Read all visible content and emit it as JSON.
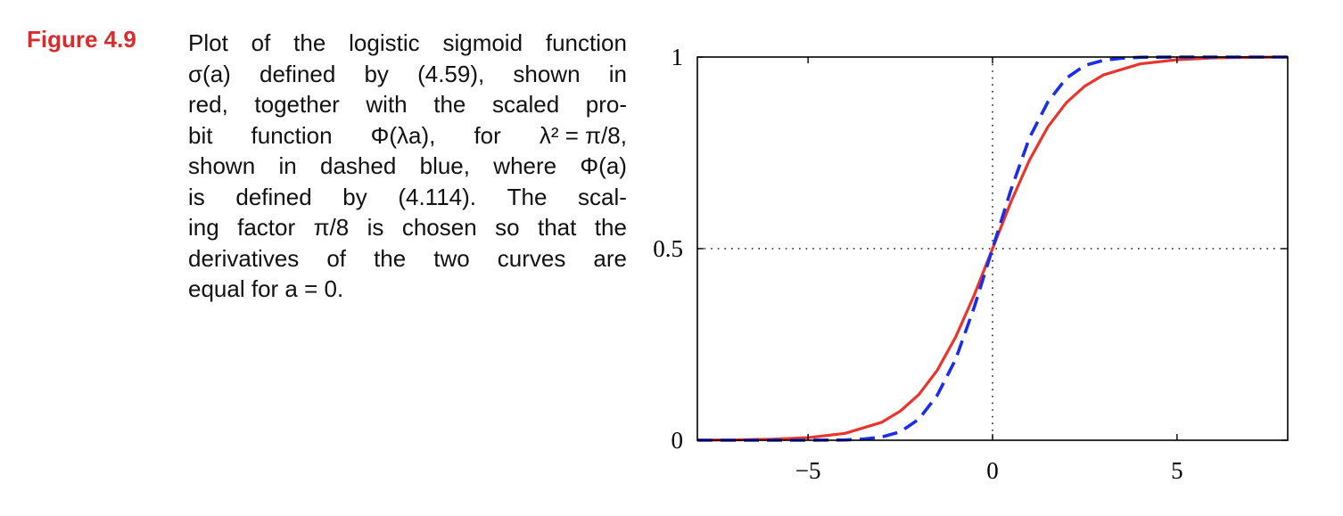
{
  "figure": {
    "label": "Figure 4.9",
    "caption_lines": [
      [
        "Plot",
        "of",
        "the",
        "logistic",
        "sigmoid",
        "function"
      ],
      [
        "σ(a)",
        "defined",
        "by",
        "(4.59),",
        "shown",
        "in"
      ],
      [
        "red,",
        "together",
        "with",
        "the",
        "scaled",
        "pro-"
      ],
      [
        "bit",
        "function",
        "Φ(λa),",
        "for",
        "λ² = π/8,"
      ],
      [
        "shown",
        "in",
        "dashed",
        "blue,",
        "where",
        "Φ(a)"
      ],
      [
        "is",
        "defined",
        "by",
        "(4.114).",
        "The",
        "scal-"
      ],
      [
        "ing",
        "factor",
        "π/8",
        "is",
        "chosen",
        "so",
        "that",
        "the"
      ],
      [
        "derivatives",
        "of",
        "the",
        "two",
        "curves",
        "are"
      ],
      [
        "equal for a = 0."
      ]
    ]
  },
  "chart_data": {
    "type": "line",
    "title": "",
    "xlabel": "",
    "ylabel": "",
    "xlim": [
      -8,
      8
    ],
    "ylim": [
      0,
      1
    ],
    "x_ticks": [
      -5,
      0,
      5
    ],
    "x_tick_labels": [
      "−5",
      "0",
      "5"
    ],
    "y_ticks": [
      0,
      0.5,
      1
    ],
    "y_tick_labels": [
      "0",
      "0.5",
      "1"
    ],
    "reference_lines": {
      "x": 0,
      "y": 0.5,
      "style": "dotted"
    },
    "series": [
      {
        "color": "#e8352d",
        "style": "solid",
        "x": [
          -8,
          -7,
          -6,
          -5,
          -4,
          -3,
          -2.5,
          -2,
          -1.5,
          -1,
          -0.5,
          0,
          0.5,
          1,
          1.5,
          2,
          2.5,
          3,
          4,
          5,
          6,
          7,
          8
        ],
        "values": [
          0.0003,
          0.0009,
          0.0025,
          0.0067,
          0.018,
          0.047,
          0.076,
          0.119,
          0.182,
          0.269,
          0.378,
          0.5,
          0.622,
          0.731,
          0.818,
          0.881,
          0.924,
          0.953,
          0.982,
          0.993,
          0.998,
          0.999,
          1.0
        ]
      },
      {
        "color": "#1a2ee8",
        "style": "dashed",
        "x": [
          -8,
          -6,
          -5,
          -4,
          -3.5,
          -3,
          -2.5,
          -2,
          -1.5,
          -1,
          -0.5,
          0,
          0.5,
          1,
          1.5,
          2,
          2.5,
          3,
          3.5,
          4,
          5,
          6,
          8
        ],
        "values": [
          0.0,
          0.0,
          0.0,
          0.0007,
          0.003,
          0.0085,
          0.022,
          0.055,
          0.117,
          0.211,
          0.346,
          0.5,
          0.654,
          0.789,
          0.883,
          0.945,
          0.978,
          0.9915,
          0.997,
          0.9993,
          1.0,
          1.0,
          1.0
        ]
      }
    ]
  }
}
